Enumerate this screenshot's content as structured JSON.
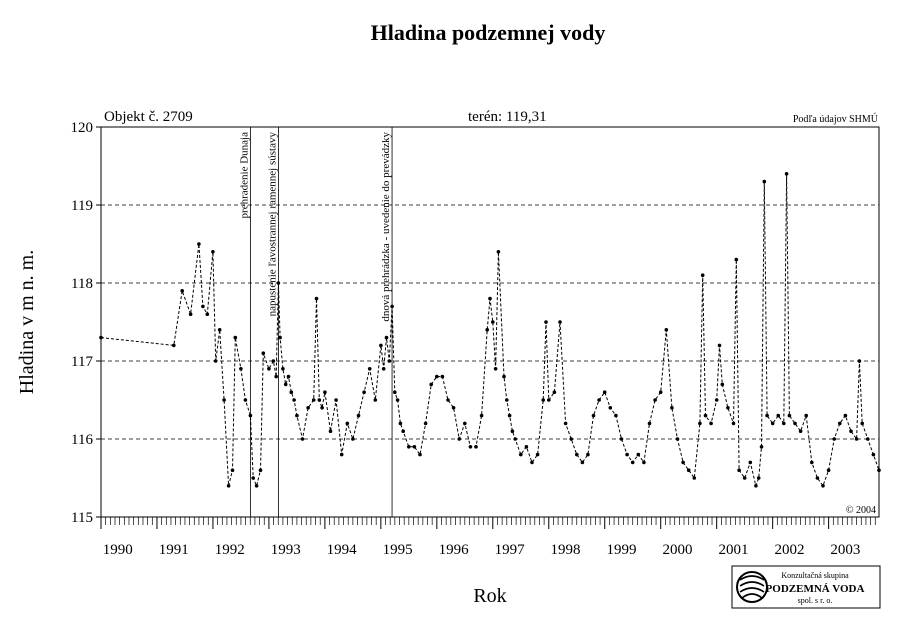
{
  "chart_data": {
    "type": "line",
    "title": "Hladina podzemnej vody",
    "object_label": "Objekt č. 2709",
    "terrain_label": "terén: 119,31",
    "source_label": "Podľa údajov SHMÚ",
    "copyright": "© 2004",
    "xlabel": "Rok",
    "ylabel": "Hladina v m n. m.",
    "xlim": [
      1990,
      2003.9
    ],
    "ylim": [
      115,
      120
    ],
    "y_ticks": [
      115,
      116,
      117,
      118,
      119,
      120
    ],
    "x_tick_labels": [
      "1990",
      "1991",
      "1992",
      "1993",
      "1994",
      "1995",
      "1996",
      "1997",
      "1998",
      "1999",
      "2000",
      "2001",
      "2002",
      "2003"
    ],
    "grid": "horizontal dashed",
    "events": [
      {
        "x": 1992.67,
        "label": "prehradenie Dunaja"
      },
      {
        "x": 1993.17,
        "label": "napustenie ľavostrannej ramennej sústavy"
      },
      {
        "x": 1995.2,
        "label": "dnová prehrádzka - uvedenie do prevádzky"
      }
    ],
    "series": [
      {
        "color": "#000000",
        "x": [
          1990.0,
          1991.3,
          1991.45,
          1991.6,
          1991.75,
          1991.82,
          1991.9,
          1992.0,
          1992.05,
          1992.12,
          1992.2,
          1992.28,
          1992.35,
          1992.4,
          1992.5,
          1992.58,
          1992.67,
          1992.72,
          1992.78,
          1992.85,
          1992.9,
          1993.0,
          1993.08,
          1993.13,
          1993.17,
          1993.2,
          1993.25,
          1993.3,
          1993.35,
          1993.4,
          1993.45,
          1993.5,
          1993.6,
          1993.7,
          1993.8,
          1993.85,
          1993.9,
          1993.95,
          1994.0,
          1994.1,
          1994.2,
          1994.3,
          1994.4,
          1994.5,
          1994.6,
          1994.7,
          1994.8,
          1994.9,
          1995.0,
          1995.05,
          1995.1,
          1995.15,
          1995.2,
          1995.25,
          1995.3,
          1995.35,
          1995.4,
          1995.5,
          1995.6,
          1995.7,
          1995.8,
          1995.9,
          1996.0,
          1996.1,
          1996.2,
          1996.3,
          1996.4,
          1996.5,
          1996.6,
          1996.7,
          1996.8,
          1996.9,
          1996.95,
          1997.0,
          1997.05,
          1997.1,
          1997.2,
          1997.25,
          1997.3,
          1997.35,
          1997.4,
          1997.5,
          1997.6,
          1997.7,
          1997.8,
          1997.9,
          1997.95,
          1998.0,
          1998.1,
          1998.2,
          1998.3,
          1998.4,
          1998.5,
          1998.6,
          1998.7,
          1998.8,
          1998.9,
          1999.0,
          1999.1,
          1999.2,
          1999.3,
          1999.4,
          1999.5,
          1999.6,
          1999.7,
          1999.8,
          1999.9,
          2000.0,
          2000.1,
          2000.2,
          2000.3,
          2000.4,
          2000.5,
          2000.6,
          2000.7,
          2000.75,
          2000.8,
          2000.9,
          2001.0,
          2001.05,
          2001.1,
          2001.2,
          2001.3,
          2001.35,
          2001.4,
          2001.5,
          2001.6,
          2001.7,
          2001.75,
          2001.8,
          2001.85,
          2001.9,
          2002.0,
          2002.1,
          2002.2,
          2002.25,
          2002.3,
          2002.4,
          2002.5,
          2002.6,
          2002.7,
          2002.8,
          2002.9,
          2003.0,
          2003.1,
          2003.2,
          2003.3,
          2003.4,
          2003.5,
          2003.55,
          2003.6,
          2003.7,
          2003.8,
          2003.9
        ],
        "y": [
          117.3,
          117.2,
          117.9,
          117.6,
          118.5,
          117.7,
          117.6,
          118.4,
          117.0,
          117.4,
          116.5,
          115.4,
          115.6,
          117.3,
          116.9,
          116.5,
          116.3,
          115.5,
          115.4,
          115.6,
          117.1,
          116.9,
          117.0,
          116.8,
          118.0,
          117.3,
          116.9,
          116.7,
          116.8,
          116.6,
          116.5,
          116.3,
          116.0,
          116.4,
          116.5,
          117.8,
          116.5,
          116.4,
          116.6,
          116.1,
          116.5,
          115.8,
          116.2,
          116.0,
          116.3,
          116.6,
          116.9,
          116.5,
          117.2,
          116.9,
          117.3,
          117.0,
          117.7,
          116.6,
          116.5,
          116.2,
          116.1,
          115.9,
          115.9,
          115.8,
          116.2,
          116.7,
          116.8,
          116.8,
          116.5,
          116.4,
          116.0,
          116.2,
          115.9,
          115.9,
          116.3,
          117.4,
          117.8,
          117.5,
          116.9,
          118.4,
          116.8,
          116.5,
          116.3,
          116.1,
          116.0,
          115.8,
          115.9,
          115.7,
          115.8,
          116.5,
          117.5,
          116.5,
          116.6,
          117.5,
          116.2,
          116.0,
          115.8,
          115.7,
          115.8,
          116.3,
          116.5,
          116.6,
          116.4,
          116.3,
          116.0,
          115.8,
          115.7,
          115.8,
          115.7,
          116.2,
          116.5,
          116.6,
          117.4,
          116.4,
          116.0,
          115.7,
          115.6,
          115.5,
          116.2,
          118.1,
          116.3,
          116.2,
          116.5,
          117.2,
          116.7,
          116.4,
          116.2,
          118.3,
          115.6,
          115.5,
          115.7,
          115.4,
          115.5,
          115.9,
          119.3,
          116.3,
          116.2,
          116.3,
          116.2,
          119.4,
          116.3,
          116.2,
          116.1,
          116.3,
          115.7,
          115.5,
          115.4,
          115.6,
          116.0,
          116.2,
          116.3,
          116.1,
          116.0,
          117.0,
          116.2,
          116.0,
          115.8,
          115.6
        ]
      }
    ]
  },
  "logo": {
    "line1": "Konzultačná skupina",
    "line2": "PODZEMNÁ VODA",
    "line3": "spol. s r. o."
  }
}
